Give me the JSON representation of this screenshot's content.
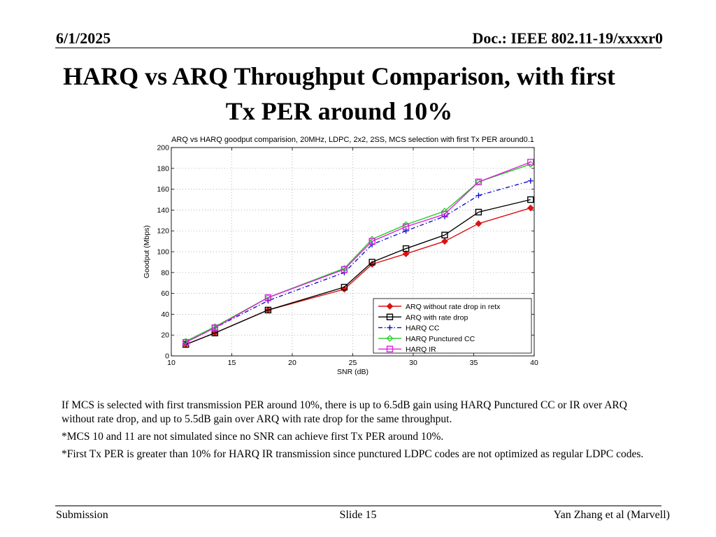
{
  "header": {
    "date": "6/1/2025",
    "doc": "Doc.: IEEE 802.11-19/xxxxr0"
  },
  "slide": {
    "title_line1": "HARQ vs ARQ Throughput Comparison, with first",
    "title_line2": "Tx PER around 10%"
  },
  "notes": [
    "If MCS is selected with first transmission PER around 10%, there is up to 6.5dB gain using HARQ Punctured CC or IR over ARQ without rate drop, and up to 5.5dB gain over ARQ with rate drop for the same throughput.",
    "*MCS 10 and 11 are not simulated since no SNR can achieve first Tx PER around 10%.",
    "*First Tx PER is greater than 10% for HARQ IR transmission since punctured LDPC codes are not optimized as regular LDPC codes."
  ],
  "footer": {
    "left": "Submission",
    "center": "Slide 15",
    "right": "Yan Zhang et al (Marvell)"
  },
  "chart_data": {
    "type": "line",
    "title": "ARQ vs HARQ goodput comparision, 20MHz, LDPC, 2x2, 2SS, MCS selection with first Tx PER around0.1",
    "xlabel": "SNR (dB)",
    "ylabel": "Goodput (Mbps)",
    "xlim": [
      10,
      40
    ],
    "ylim": [
      0,
      200
    ],
    "xticks": [
      10,
      15,
      20,
      25,
      30,
      35,
      40
    ],
    "yticks": [
      0,
      20,
      40,
      60,
      80,
      100,
      120,
      140,
      160,
      180,
      200
    ],
    "grid": true,
    "legend_position": "bottom-right",
    "series": [
      {
        "name": "ARQ without rate drop in retx",
        "color": "#dd1111",
        "dash": "solid",
        "marker": "diamond-filled",
        "x": [
          11.2,
          13.6,
          18,
          24.3,
          26.6,
          29.4,
          32.6,
          35.4,
          39.7
        ],
        "y": [
          11,
          22,
          44,
          64,
          88,
          98,
          110,
          127,
          142
        ]
      },
      {
        "name": "ARQ with rate drop",
        "color": "#000000",
        "dash": "solid",
        "marker": "square",
        "x": [
          11.2,
          13.6,
          18,
          24.3,
          26.6,
          29.4,
          32.6,
          35.4,
          39.7
        ],
        "y": [
          11,
          22,
          44,
          66,
          90,
          103,
          116,
          138,
          150
        ]
      },
      {
        "name": "HARQ CC",
        "color": "#1111cc",
        "dash": "dashdot",
        "marker": "plus",
        "x": [
          11.2,
          13.6,
          18,
          24.3,
          26.6,
          29.4,
          32.6,
          35.4,
          39.7
        ],
        "y": [
          13,
          27,
          53,
          80,
          107,
          120,
          134,
          154,
          168
        ]
      },
      {
        "name": "HARQ Punctured CC",
        "color": "#22cc22",
        "dash": "solid",
        "marker": "diamond",
        "x": [
          11.2,
          13.6,
          18,
          24.3,
          26.6,
          29.4,
          32.6,
          35.4,
          39.7
        ],
        "y": [
          14,
          28,
          56,
          84,
          112,
          126,
          139,
          167,
          184
        ]
      },
      {
        "name": "HARQ IR",
        "color": "#dd22dd",
        "dash": "solid",
        "marker": "square",
        "x": [
          11.2,
          13.6,
          18,
          24.3,
          26.6,
          29.4,
          32.6,
          35.4,
          39.7
        ],
        "y": [
          13,
          27,
          56,
          83,
          110,
          124,
          136,
          167,
          186
        ]
      }
    ]
  }
}
